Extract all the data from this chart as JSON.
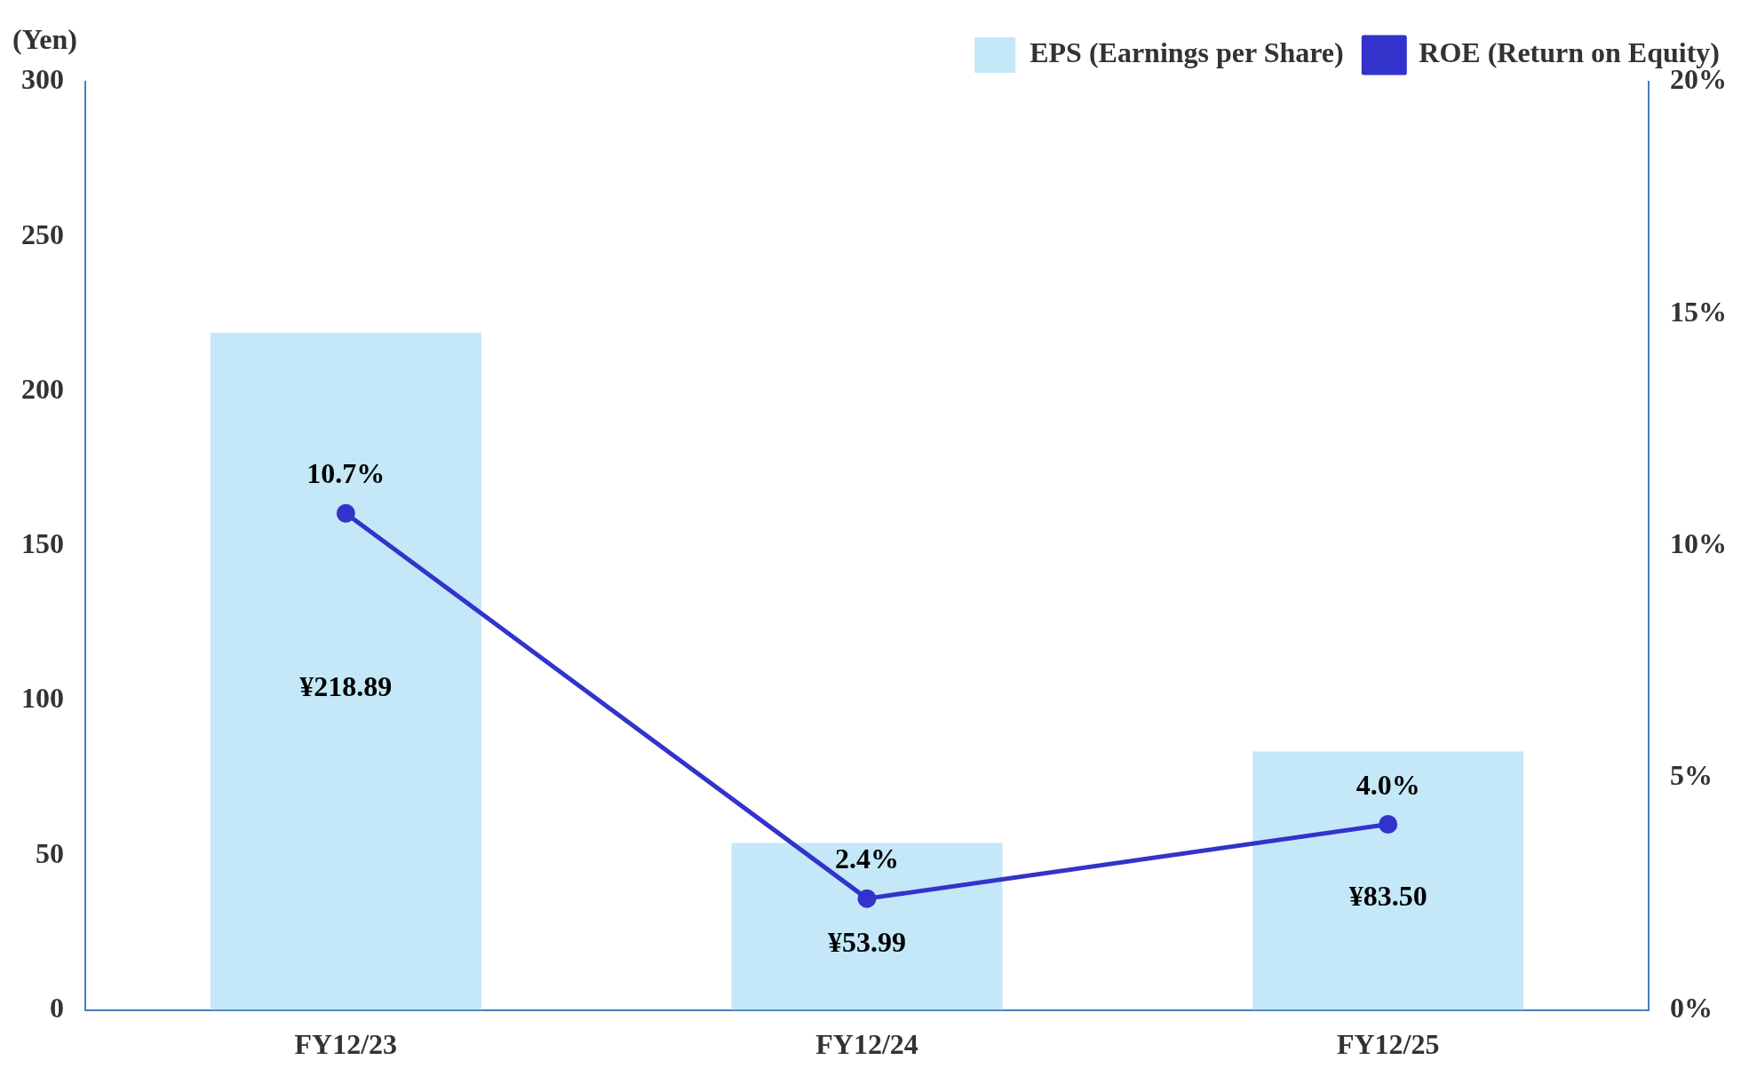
{
  "chart_data": {
    "type": "bar",
    "categories": [
      "FY12/23",
      "FY12/24",
      "FY12/25"
    ],
    "ylabel": "(Yen)",
    "ylim": [
      0,
      300
    ],
    "yticks": [
      0,
      50,
      100,
      150,
      200,
      250,
      300
    ],
    "y2lim": [
      0,
      20
    ],
    "y2ticks": [
      {
        "value": 0,
        "label": "0%"
      },
      {
        "value": 5,
        "label": "5%"
      },
      {
        "value": 10,
        "label": "10%"
      },
      {
        "value": 15,
        "label": "15%"
      },
      {
        "value": 20,
        "label": "20%"
      }
    ],
    "series": [
      {
        "name": "EPS (Earnings per Share)",
        "color": "#c4e8f8",
        "values": [
          218.89,
          53.99,
          83.5
        ],
        "value_labels": [
          "¥218.89",
          "¥53.99",
          "¥83.50"
        ]
      },
      {
        "name": "ROE (Return on Equity)",
        "type": "line",
        "axis": "y2",
        "color": "#3333cc",
        "values": [
          10.7,
          2.4,
          4.0
        ],
        "value_labels": [
          "10.7%",
          "2.4%",
          "4.0%"
        ]
      }
    ],
    "legend": "top right",
    "marker": "circle",
    "grid": false
  }
}
